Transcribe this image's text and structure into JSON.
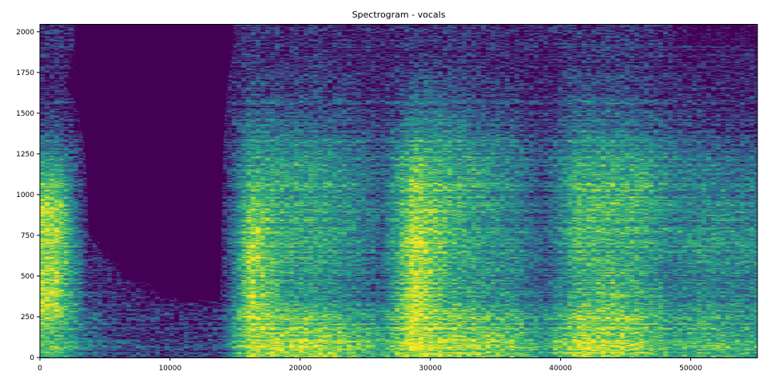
{
  "chart_data": {
    "type": "heatmap",
    "title": "Spectrogram - vocals",
    "xlabel": "",
    "ylabel": "",
    "xlim": [
      0,
      55125
    ],
    "ylim": [
      0,
      2048
    ],
    "colormap": "viridis",
    "grid": false,
    "x_ticks": [
      "0",
      "10000",
      "20000",
      "30000",
      "40000",
      "50000"
    ],
    "y_ticks": [
      "0",
      "250",
      "500",
      "750",
      "1000",
      "1250",
      "1500",
      "1750",
      "2000"
    ],
    "time_bin_edges": [
      0,
      2500,
      5000,
      7500,
      10000,
      12500,
      15000,
      17500,
      20000,
      22500,
      25000,
      27500,
      30000,
      32500,
      35000,
      37500,
      40000,
      42500,
      45000,
      47500,
      50000,
      52500,
      55125
    ],
    "freq_bin_edges": [
      0,
      256,
      512,
      768,
      1024,
      1280,
      1536,
      1792,
      2048
    ],
    "intensity": [
      [
        0.7,
        0.9,
        0.8,
        0.9,
        0.6,
        0.25,
        0.1,
        0.15
      ],
      [
        0.35,
        0.2,
        0.1,
        0.05,
        0.03,
        0.02,
        0.02,
        0.02
      ],
      [
        0.25,
        0.1,
        0.05,
        0.02,
        0.02,
        0.02,
        0.02,
        0.02
      ],
      [
        0.2,
        0.08,
        0.03,
        0.02,
        0.02,
        0.02,
        0.02,
        0.02
      ],
      [
        0.2,
        0.05,
        0.02,
        0.02,
        0.02,
        0.02,
        0.02,
        0.02
      ],
      [
        0.25,
        0.05,
        0.03,
        0.02,
        0.02,
        0.02,
        0.02,
        0.02
      ],
      [
        0.9,
        0.85,
        0.85,
        0.8,
        0.6,
        0.4,
        0.25,
        0.15
      ],
      [
        0.85,
        0.55,
        0.55,
        0.6,
        0.55,
        0.35,
        0.2,
        0.1
      ],
      [
        0.85,
        0.5,
        0.55,
        0.6,
        0.55,
        0.35,
        0.2,
        0.15
      ],
      [
        0.75,
        0.4,
        0.45,
        0.5,
        0.45,
        0.3,
        0.15,
        0.1
      ],
      [
        0.6,
        0.3,
        0.3,
        0.35,
        0.3,
        0.2,
        0.1,
        0.08
      ],
      [
        0.95,
        0.95,
        0.9,
        0.85,
        0.75,
        0.45,
        0.3,
        0.15
      ],
      [
        0.85,
        0.6,
        0.65,
        0.7,
        0.6,
        0.45,
        0.25,
        0.15
      ],
      [
        0.8,
        0.5,
        0.55,
        0.55,
        0.55,
        0.35,
        0.2,
        0.12
      ],
      [
        0.75,
        0.45,
        0.45,
        0.45,
        0.45,
        0.3,
        0.15,
        0.1
      ],
      [
        0.55,
        0.3,
        0.25,
        0.25,
        0.25,
        0.15,
        0.1,
        0.1
      ],
      [
        0.9,
        0.6,
        0.6,
        0.7,
        0.6,
        0.4,
        0.25,
        0.15
      ],
      [
        0.85,
        0.7,
        0.6,
        0.7,
        0.6,
        0.4,
        0.25,
        0.15
      ],
      [
        0.8,
        0.6,
        0.55,
        0.65,
        0.6,
        0.35,
        0.2,
        0.15
      ],
      [
        0.6,
        0.4,
        0.4,
        0.45,
        0.45,
        0.25,
        0.1,
        0.08
      ],
      [
        0.7,
        0.45,
        0.5,
        0.5,
        0.4,
        0.2,
        0.1,
        0.08
      ],
      [
        0.6,
        0.4,
        0.45,
        0.45,
        0.35,
        0.15,
        0.1,
        0.08
      ]
    ]
  }
}
